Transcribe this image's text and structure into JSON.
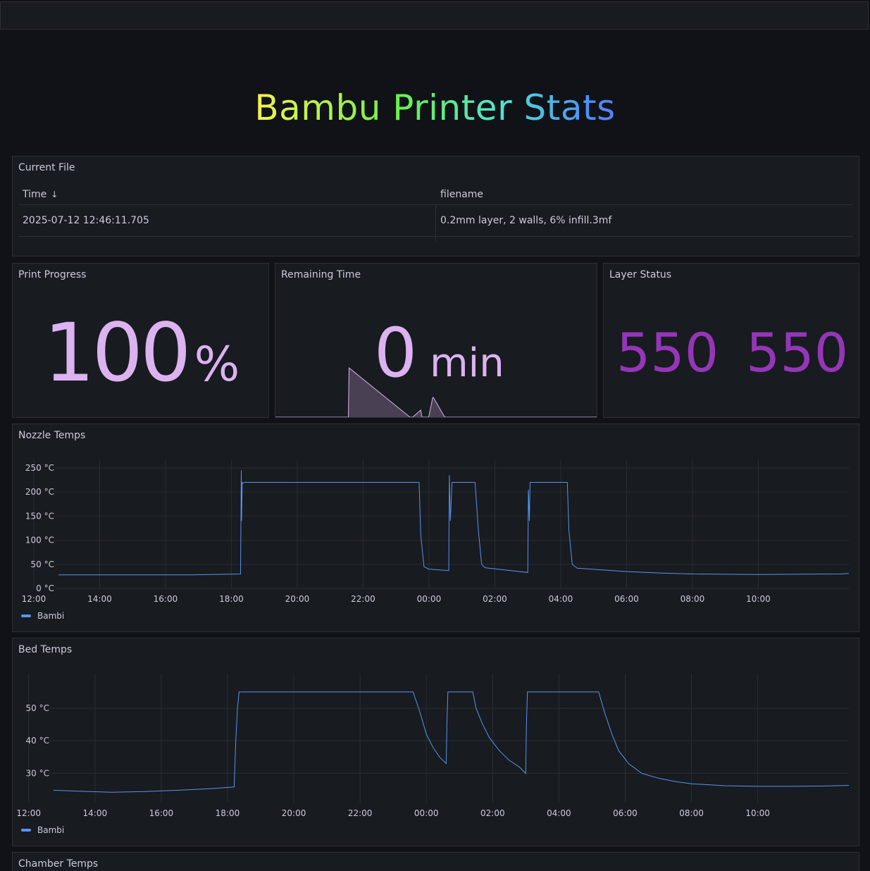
{
  "dashboard": {
    "title": "Bambu Printer Stats"
  },
  "current_file": {
    "title": "Current File",
    "columns": [
      "Time",
      "filename"
    ],
    "rows": [
      [
        "2025-07-12 12:46:11.705",
        "0.2mm layer, 2 walls, 6% infill.3mf"
      ]
    ]
  },
  "print_progress": {
    "title": "Print Progress",
    "value": "100",
    "unit": "%"
  },
  "remaining_time": {
    "title": "Remaining Time",
    "value": "0",
    "unit": "min"
  },
  "layer_status": {
    "title": "Layer Status",
    "current_layer": "550",
    "total_layers": "550"
  },
  "nozzle": {
    "title": "Nozzle Temps",
    "legend": "Bambi"
  },
  "bed": {
    "title": "Bed Temps",
    "legend": "Bambi"
  },
  "chamber": {
    "title": "Chamber Temps"
  },
  "colors": {
    "series": "#5794f2",
    "stat": "#dcb2f1",
    "layer": "#9536b8"
  },
  "chart_data": [
    {
      "type": "line",
      "panel": "Nozzle Temps",
      "x_ticks": [
        "14:00",
        "16:00",
        "18:00",
        "20:00",
        "22:00",
        "00:00",
        "02:00",
        "04:00",
        "06:00",
        "08:00",
        "10:00",
        "12:00"
      ],
      "y_ticks": [
        "0 °C",
        "50 °C",
        "100 °C",
        "150 °C",
        "200 °C",
        "250 °C"
      ],
      "ylim": [
        0,
        250
      ],
      "x_range_hours": [
        12.75,
        36.75
      ],
      "series": [
        {
          "name": "Bambi",
          "x": [
            12.75,
            16.8,
            18.28,
            18.3,
            18.31,
            18.33,
            18.35,
            18.4,
            22.8,
            23.7,
            23.75,
            23.85,
            24.0,
            24.6,
            24.62,
            24.65,
            24.7,
            24.75,
            24.8,
            25.4,
            25.5,
            25.6,
            25.7,
            27.0,
            27.02,
            27.05,
            27.07,
            27.1,
            27.15,
            28.2,
            28.25,
            28.35,
            28.5,
            30.0,
            31.0,
            32.0,
            34.0,
            36.5,
            36.75
          ],
          "values": [
            28,
            28,
            30,
            245,
            140,
            220,
            218,
            220,
            220,
            220,
            110,
            45,
            40,
            37,
            235,
            140,
            220,
            220,
            220,
            220,
            120,
            50,
            43,
            33,
            205,
            140,
            220,
            220,
            220,
            220,
            120,
            50,
            42,
            35,
            32,
            30,
            29,
            30,
            31
          ]
        }
      ],
      "grid": true,
      "legend": "bottom-left"
    },
    {
      "type": "line",
      "panel": "Bed Temps",
      "x_ticks": [
        "14:00",
        "16:00",
        "18:00",
        "20:00",
        "22:00",
        "00:00",
        "02:00",
        "04:00",
        "06:00",
        "08:00",
        "10:00",
        "12:00"
      ],
      "y_ticks": [
        "30 °C",
        "40 °C",
        "50 °C"
      ],
      "ylim": [
        21,
        58
      ],
      "x_range_hours": [
        12.75,
        36.75
      ],
      "series": [
        {
          "name": "Bambi",
          "x": [
            12.75,
            13.5,
            14.5,
            15.5,
            16.5,
            17.5,
            18.2,
            18.25,
            18.3,
            18.35,
            23.6,
            23.8,
            24.0,
            24.2,
            24.4,
            24.6,
            24.62,
            24.65,
            25.4,
            25.5,
            25.7,
            25.9,
            26.2,
            26.5,
            26.8,
            27.0,
            27.02,
            27.05,
            29.2,
            29.4,
            29.6,
            29.8,
            30.1,
            30.5,
            31.0,
            31.5,
            32.0,
            33.0,
            34.0,
            35.0,
            36.0,
            36.75
          ],
          "values": [
            24.8,
            24.5,
            24.2,
            24.4,
            24.8,
            25.3,
            25.8,
            40,
            50,
            55,
            55,
            49,
            42,
            38,
            35,
            33,
            45,
            55,
            55,
            50,
            45,
            41,
            37,
            34,
            32,
            30,
            45,
            55,
            55,
            48,
            42,
            37,
            33,
            30,
            28.5,
            27.5,
            26.8,
            26.2,
            26.0,
            26.0,
            26.1,
            26.3
          ]
        }
      ],
      "grid": true,
      "legend": "bottom-left"
    },
    {
      "type": "area",
      "panel": "Remaining Time",
      "x_range_hours": [
        12.75,
        36.75
      ],
      "series": [
        {
          "x": [
            12.75,
            18.2,
            18.25,
            22.8,
            23.0,
            23.6,
            23.7,
            24.2,
            24.5,
            24.55,
            25.4,
            25.8,
            36.75
          ],
          "values": [
            0,
            0,
            70,
            0,
            0,
            10,
            0,
            0,
            28,
            28,
            0,
            0,
            0
          ]
        }
      ]
    }
  ]
}
